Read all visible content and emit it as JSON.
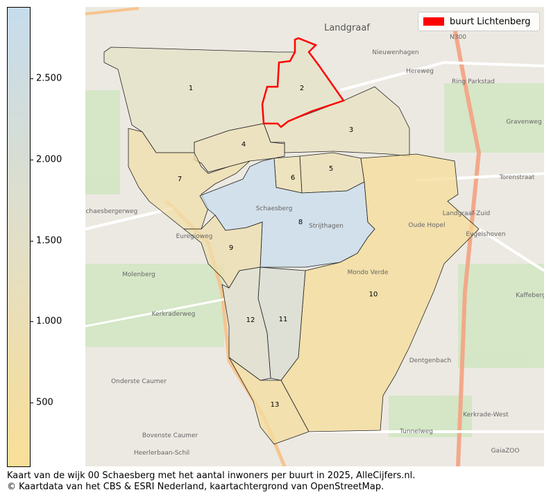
{
  "colorbar": {
    "ticks": [
      "2.500",
      "2.000",
      "1.500",
      "1.000",
      "500"
    ],
    "range": [
      107,
      2940
    ],
    "colors": {
      "low": "#f9df98",
      "high": "#c6dcec"
    }
  },
  "legend": {
    "label": "buurt Lichtenberg",
    "color": "#ff0000"
  },
  "neighbourhoods": [
    {
      "label": "1",
      "fill": "#e6e2c6"
    },
    {
      "label": "2",
      "fill": "#e6e2c6"
    },
    {
      "label": "3",
      "fill": "#e8e0c0"
    },
    {
      "label": "4",
      "fill": "#eddfb4"
    },
    {
      "label": "5",
      "fill": "#eddfb4"
    },
    {
      "label": "6",
      "fill": "#eee0b2"
    },
    {
      "label": "7",
      "fill": "#f0deaa"
    },
    {
      "label": "8",
      "fill": "#c8dcec"
    },
    {
      "label": "9",
      "fill": "#eeddae"
    },
    {
      "label": "10",
      "fill": "#f6dc98"
    },
    {
      "label": "11",
      "fill": "#d9dcd2"
    },
    {
      "label": "12",
      "fill": "#dfdecc"
    },
    {
      "label": "13",
      "fill": "#f4dc9e"
    }
  ],
  "map_labels": [
    "Landgraaf",
    "Nieuwenhagen",
    "Schaesberg",
    "Strijthagen",
    "Molenberg",
    "Onderste Caumer",
    "Bovenste Caumer",
    "Heerlerbaan-Schil",
    "Dentgenbach",
    "Mondo Verde",
    "Oude Hopel",
    "Eygelshoven",
    "Kaffeberg",
    "GaiaZOO",
    "Hereweg",
    "Tunnelweg",
    "Kerkraderweg",
    "Euregioweg",
    "Ring Parkstad",
    "Landgraaf-Zuid",
    "Kerkrade-West",
    "N300",
    "Schaesbergerweg",
    "Gravenweg",
    "Torenstraat"
  ],
  "caption": {
    "line1": "Kaart van de wijk 00 Schaesberg met het aantal inwoners per buurt in 2025, AlleCijfers.nl.",
    "line2": "© Kaartdata van het CBS & ESRI Nederland, kaartachtergrond van OpenStreetMap."
  }
}
